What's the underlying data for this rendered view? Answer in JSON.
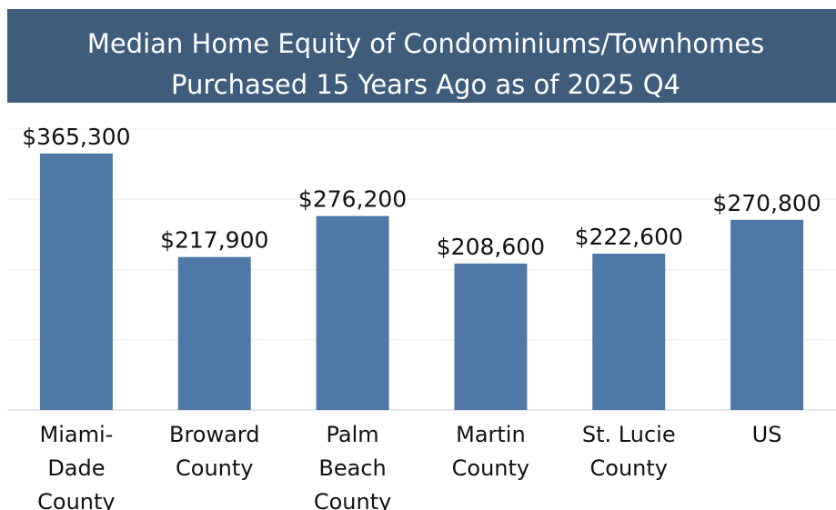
{
  "chart_data": {
    "type": "bar",
    "title": "Median Home Equity of Condominiums/Townhomes Purchased 15 Years Ago as of 2025 Q4",
    "categories": [
      "Miami-Dade County",
      "Broward County",
      "Palm Beach County",
      "Martin County",
      "St. Lucie County",
      "US"
    ],
    "values": [
      365300,
      217900,
      276200,
      208600,
      222600,
      270800
    ],
    "value_labels": [
      "$365,300",
      "$217,900",
      "$276,200",
      "$208,600",
      "$222,600",
      "$270,800"
    ],
    "color": "#4e79a7",
    "ylim": [
      0,
      435000
    ],
    "yticks": [
      0,
      100000,
      200000,
      300000,
      400000
    ],
    "grid": true
  }
}
